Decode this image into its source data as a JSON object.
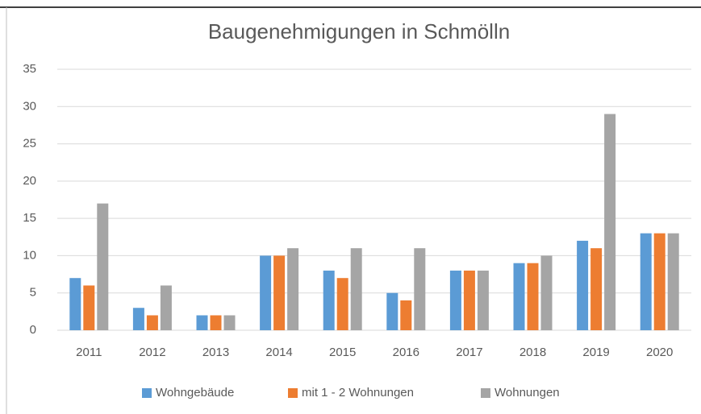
{
  "chart_data": {
    "type": "bar",
    "title": "Baugenehmigungen in Schmölln",
    "categories": [
      "2011",
      "2012",
      "2013",
      "2014",
      "2015",
      "2016",
      "2017",
      "2018",
      "2019",
      "2020"
    ],
    "series": [
      {
        "name": "Wohngebäude",
        "color": "#5b9bd5",
        "values": [
          7,
          3,
          2,
          10,
          8,
          5,
          8,
          9,
          12,
          13
        ]
      },
      {
        "name": "mit 1 - 2 Wohnungen",
        "color": "#ed7d31",
        "values": [
          6,
          2,
          2,
          10,
          7,
          4,
          8,
          9,
          11,
          13
        ]
      },
      {
        "name": "Wohnungen",
        "color": "#a5a5a5",
        "values": [
          17,
          6,
          2,
          11,
          11,
          11,
          8,
          10,
          29,
          13
        ]
      }
    ],
    "ylim": [
      0,
      35
    ],
    "yticks": [
      0,
      5,
      10,
      15,
      20,
      25,
      30,
      35
    ],
    "grid": true,
    "legend": "bottom"
  }
}
